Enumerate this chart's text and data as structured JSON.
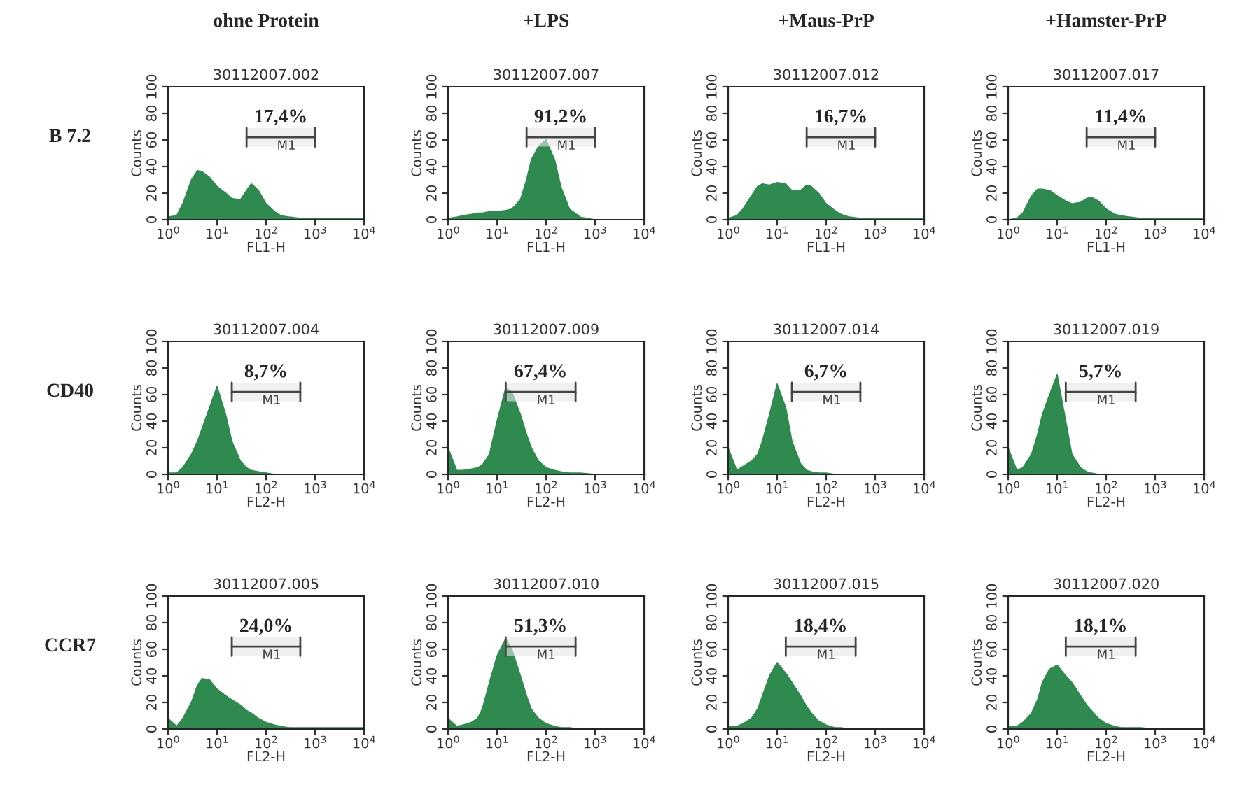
{
  "chart_data": [
    {
      "type": "area",
      "title": "ohne Protein",
      "subtitle": "30112007.002",
      "xlabel": "FL1-H",
      "ylabel": "Counts",
      "annotations": [
        "17,4%",
        "B 7.2"
      ],
      "log": "x",
      "xlim": [
        1,
        10000
      ],
      "ylim": [
        0,
        100
      ],
      "xticks": [
        {
          "value": 1,
          "label": "10$^{0}$"
        },
        {
          "value": 10,
          "label": "10$^{1}$"
        },
        {
          "value": 100,
          "label": "10$^{2}$"
        },
        {
          "value": 1000,
          "label": "10$^{3}$"
        },
        {
          "value": 10000,
          "label": "10$^{4}$"
        }
      ],
      "yticks": [
        0,
        20,
        40,
        60,
        80,
        100
      ],
      "bands": [
        {
          "axis": "x",
          "from": 40,
          "to": 1000,
          "label": "M1"
        }
      ],
      "x": [
        1,
        1.5,
        2,
        3,
        4,
        5,
        7,
        10,
        15,
        20,
        30,
        40,
        50,
        70,
        100,
        150,
        200,
        300,
        500,
        1000,
        10000
      ],
      "series": [
        {
          "color": "#2f8a50",
          "values": [
            2,
            3,
            12,
            30,
            37,
            36,
            32,
            25,
            20,
            16,
            15,
            22,
            27,
            22,
            12,
            6,
            3,
            2,
            1,
            1,
            1
          ]
        }
      ]
    },
    {
      "type": "area",
      "title": "+LPS",
      "subtitle": "30112007.007",
      "xlabel": "FL1-H",
      "ylabel": "Counts",
      "annotations": [
        "91,2%"
      ],
      "log": "x",
      "xlim": [
        1,
        10000
      ],
      "ylim": [
        0,
        100
      ],
      "xticks": [
        {
          "value": 1,
          "label": "10$^{0}$"
        },
        {
          "value": 10,
          "label": "10$^{1}$"
        },
        {
          "value": 100,
          "label": "10$^{2}$"
        },
        {
          "value": 1000,
          "label": "10$^{3}$"
        },
        {
          "value": 10000,
          "label": "10$^{4}$"
        }
      ],
      "yticks": [
        0,
        20,
        40,
        60,
        80,
        100
      ],
      "bands": [
        {
          "axis": "x",
          "from": 40,
          "to": 1000,
          "label": "M1"
        }
      ],
      "x": [
        1,
        1.5,
        2,
        3,
        4,
        5,
        7,
        10,
        15,
        20,
        30,
        40,
        50,
        70,
        100,
        150,
        200,
        300,
        500,
        1000,
        10000
      ],
      "series": [
        {
          "color": "#2f8a50",
          "values": [
            1,
            2,
            3,
            4,
            5,
            5,
            6,
            6,
            7,
            8,
            15,
            30,
            45,
            55,
            60,
            45,
            25,
            8,
            2,
            0,
            0
          ]
        }
      ]
    },
    {
      "type": "area",
      "title": "+Maus-PrP",
      "subtitle": "30112007.012",
      "xlabel": "FL1-H",
      "ylabel": "Counts",
      "annotations": [
        "16,7%"
      ],
      "log": "x",
      "xlim": [
        1,
        10000
      ],
      "ylim": [
        0,
        100
      ],
      "xticks": [
        {
          "value": 1,
          "label": "10$^{0}$"
        },
        {
          "value": 10,
          "label": "10$^{1}$"
        },
        {
          "value": 100,
          "label": "10$^{2}$"
        },
        {
          "value": 1000,
          "label": "10$^{3}$"
        },
        {
          "value": 10000,
          "label": "10$^{4}$"
        }
      ],
      "yticks": [
        0,
        20,
        40,
        60,
        80,
        100
      ],
      "bands": [
        {
          "axis": "x",
          "from": 40,
          "to": 1000,
          "label": "M1"
        }
      ],
      "x": [
        1,
        1.5,
        2,
        3,
        4,
        5,
        7,
        10,
        15,
        20,
        30,
        40,
        50,
        70,
        100,
        150,
        200,
        300,
        500,
        1000,
        10000
      ],
      "series": [
        {
          "color": "#2f8a50",
          "values": [
            1,
            3,
            8,
            18,
            25,
            27,
            26,
            28,
            27,
            22,
            22,
            26,
            25,
            20,
            12,
            7,
            4,
            2,
            1,
            1,
            1
          ]
        }
      ]
    },
    {
      "type": "area",
      "title": "+Hamster-PrP",
      "subtitle": "30112007.017",
      "xlabel": "FL1-H",
      "ylabel": "Counts",
      "annotations": [
        "11,4%"
      ],
      "log": "x",
      "xlim": [
        1,
        10000
      ],
      "ylim": [
        0,
        100
      ],
      "xticks": [
        {
          "value": 1,
          "label": "10$^{0}$"
        },
        {
          "value": 10,
          "label": "10$^{1}$"
        },
        {
          "value": 100,
          "label": "10$^{2}$"
        },
        {
          "value": 1000,
          "label": "10$^{3}$"
        },
        {
          "value": 10000,
          "label": "10$^{4}$"
        }
      ],
      "yticks": [
        0,
        20,
        40,
        60,
        80,
        100
      ],
      "bands": [
        {
          "axis": "x",
          "from": 40,
          "to": 1000,
          "label": "M1"
        }
      ],
      "x": [
        1,
        1.5,
        2,
        3,
        4,
        5,
        7,
        10,
        15,
        20,
        30,
        40,
        50,
        70,
        100,
        150,
        200,
        300,
        500,
        1000,
        10000
      ],
      "series": [
        {
          "color": "#2f8a50",
          "values": [
            0,
            1,
            5,
            18,
            23,
            23,
            22,
            18,
            14,
            12,
            13,
            16,
            17,
            14,
            8,
            4,
            3,
            2,
            1,
            1,
            1
          ]
        }
      ]
    },
    {
      "type": "area",
      "subtitle": "30112007.004",
      "xlabel": "FL2-H",
      "ylabel": "Counts",
      "annotations": [
        "8,7%",
        "CD40"
      ],
      "log": "x",
      "xlim": [
        1,
        10000
      ],
      "ylim": [
        0,
        100
      ],
      "xticks": [
        {
          "value": 1,
          "label": "10$^{0}$"
        },
        {
          "value": 10,
          "label": "10$^{1}$"
        },
        {
          "value": 100,
          "label": "10$^{2}$"
        },
        {
          "value": 1000,
          "label": "10$^{3}$"
        },
        {
          "value": 10000,
          "label": "10$^{4}$"
        }
      ],
      "yticks": [
        0,
        20,
        40,
        60,
        80,
        100
      ],
      "bands": [
        {
          "axis": "x",
          "from": 20,
          "to": 500,
          "label": "M1"
        }
      ],
      "x": [
        1,
        1.5,
        2,
        3,
        4,
        5,
        7,
        10,
        15,
        20,
        30,
        40,
        50,
        70,
        100,
        150,
        200,
        300,
        500,
        1000,
        10000
      ],
      "series": [
        {
          "color": "#2f8a50",
          "values": [
            1,
            1,
            5,
            15,
            25,
            35,
            50,
            66,
            45,
            25,
            10,
            5,
            3,
            2,
            1,
            0,
            0,
            0,
            0,
            0,
            0
          ]
        }
      ]
    },
    {
      "type": "area",
      "subtitle": "30112007.009",
      "xlabel": "FL2-H",
      "ylabel": "Counts",
      "annotations": [
        "67,4%"
      ],
      "log": "x",
      "xlim": [
        1,
        10000
      ],
      "ylim": [
        0,
        100
      ],
      "xticks": [
        {
          "value": 1,
          "label": "10$^{0}$"
        },
        {
          "value": 10,
          "label": "10$^{1}$"
        },
        {
          "value": 100,
          "label": "10$^{2}$"
        },
        {
          "value": 1000,
          "label": "10$^{3}$"
        },
        {
          "value": 10000,
          "label": "10$^{4}$"
        }
      ],
      "yticks": [
        0,
        20,
        40,
        60,
        80,
        100
      ],
      "bands": [
        {
          "axis": "x",
          "from": 15,
          "to": 400,
          "label": "M1"
        }
      ],
      "x": [
        1,
        1.5,
        2,
        3,
        4,
        5,
        7,
        10,
        15,
        20,
        30,
        40,
        50,
        70,
        100,
        150,
        200,
        300,
        500,
        1000,
        10000
      ],
      "series": [
        {
          "color": "#2f8a50",
          "values": [
            20,
            3,
            3,
            4,
            5,
            7,
            15,
            40,
            65,
            62,
            45,
            30,
            20,
            10,
            5,
            3,
            2,
            1,
            1,
            0,
            0
          ]
        }
      ]
    },
    {
      "type": "area",
      "subtitle": "30112007.014",
      "xlabel": "FL2-H",
      "ylabel": "Counts",
      "annotations": [
        "6,7%"
      ],
      "log": "x",
      "xlim": [
        1,
        10000
      ],
      "ylim": [
        0,
        100
      ],
      "xticks": [
        {
          "value": 1,
          "label": "10$^{0}$"
        },
        {
          "value": 10,
          "label": "10$^{1}$"
        },
        {
          "value": 100,
          "label": "10$^{2}$"
        },
        {
          "value": 1000,
          "label": "10$^{3}$"
        },
        {
          "value": 10000,
          "label": "10$^{4}$"
        }
      ],
      "yticks": [
        0,
        20,
        40,
        60,
        80,
        100
      ],
      "bands": [
        {
          "axis": "x",
          "from": 20,
          "to": 500,
          "label": "M1"
        }
      ],
      "x": [
        1,
        1.5,
        2,
        3,
        4,
        5,
        7,
        10,
        15,
        20,
        30,
        40,
        50,
        70,
        100,
        150,
        200,
        300,
        500,
        1000,
        10000
      ],
      "series": [
        {
          "color": "#2f8a50",
          "values": [
            20,
            3,
            6,
            10,
            15,
            25,
            45,
            68,
            50,
            25,
            8,
            3,
            2,
            1,
            1,
            0,
            0,
            0,
            0,
            0,
            0
          ]
        }
      ]
    },
    {
      "type": "area",
      "subtitle": "30112007.019",
      "xlabel": "FL2-H",
      "ylabel": "Counts",
      "annotations": [
        "5,7%"
      ],
      "log": "x",
      "xlim": [
        1,
        10000
      ],
      "ylim": [
        0,
        100
      ],
      "xticks": [
        {
          "value": 1,
          "label": "10$^{0}$"
        },
        {
          "value": 10,
          "label": "10$^{1}$"
        },
        {
          "value": 100,
          "label": "10$^{2}$"
        },
        {
          "value": 1000,
          "label": "10$^{3}$"
        },
        {
          "value": 10000,
          "label": "10$^{4}$"
        }
      ],
      "yticks": [
        0,
        20,
        40,
        60,
        80,
        100
      ],
      "bands": [
        {
          "axis": "x",
          "from": 15,
          "to": 400,
          "label": "M1"
        }
      ],
      "x": [
        1,
        1.5,
        2,
        3,
        4,
        5,
        7,
        10,
        15,
        20,
        30,
        40,
        50,
        70,
        100,
        150,
        200,
        300,
        500,
        1000,
        10000
      ],
      "series": [
        {
          "color": "#2f8a50",
          "values": [
            20,
            3,
            5,
            15,
            30,
            45,
            60,
            75,
            40,
            15,
            5,
            2,
            1,
            0,
            0,
            0,
            0,
            0,
            0,
            0,
            0
          ]
        }
      ]
    },
    {
      "type": "area",
      "subtitle": "30112007.005",
      "xlabel": "FL2-H",
      "ylabel": "Counts",
      "annotations": [
        "24,0%",
        "CCR7"
      ],
      "log": "x",
      "xlim": [
        1,
        10000
      ],
      "ylim": [
        0,
        100
      ],
      "xticks": [
        {
          "value": 1,
          "label": "10$^{0}$"
        },
        {
          "value": 10,
          "label": "10$^{1}$"
        },
        {
          "value": 100,
          "label": "10$^{2}$"
        },
        {
          "value": 1000,
          "label": "10$^{3}$"
        },
        {
          "value": 10000,
          "label": "10$^{4}$"
        }
      ],
      "yticks": [
        0,
        20,
        40,
        60,
        80,
        100
      ],
      "bands": [
        {
          "axis": "x",
          "from": 20,
          "to": 500,
          "label": "M1"
        }
      ],
      "x": [
        1,
        1.5,
        2,
        3,
        4,
        5,
        7,
        10,
        15,
        20,
        30,
        40,
        50,
        70,
        100,
        150,
        200,
        300,
        500,
        1000,
        10000
      ],
      "series": [
        {
          "color": "#2f8a50",
          "values": [
            8,
            2,
            8,
            20,
            33,
            38,
            37,
            30,
            25,
            22,
            18,
            14,
            12,
            8,
            5,
            3,
            2,
            1,
            1,
            1,
            1
          ]
        }
      ]
    },
    {
      "type": "area",
      "subtitle": "30112007.010",
      "xlabel": "FL2-H",
      "ylabel": "Counts",
      "annotations": [
        "51,3%"
      ],
      "log": "x",
      "xlim": [
        1,
        10000
      ],
      "ylim": [
        0,
        100
      ],
      "xticks": [
        {
          "value": 1,
          "label": "10$^{0}$"
        },
        {
          "value": 10,
          "label": "10$^{1}$"
        },
        {
          "value": 100,
          "label": "10$^{2}$"
        },
        {
          "value": 1000,
          "label": "10$^{3}$"
        },
        {
          "value": 10000,
          "label": "10$^{4}$"
        }
      ],
      "yticks": [
        0,
        20,
        40,
        60,
        80,
        100
      ],
      "bands": [
        {
          "axis": "x",
          "from": 15,
          "to": 400,
          "label": "M1"
        }
      ],
      "x": [
        1,
        1.5,
        2,
        3,
        4,
        5,
        7,
        10,
        15,
        20,
        30,
        40,
        50,
        70,
        100,
        150,
        200,
        300,
        500,
        1000,
        10000
      ],
      "series": [
        {
          "color": "#2f8a50",
          "values": [
            8,
            2,
            3,
            5,
            8,
            15,
            35,
            55,
            68,
            60,
            40,
            25,
            15,
            8,
            4,
            2,
            1,
            1,
            0,
            0,
            0
          ]
        }
      ]
    },
    {
      "type": "area",
      "subtitle": "30112007.015",
      "xlabel": "FL2-H",
      "ylabel": "Counts",
      "annotations": [
        "18,4%"
      ],
      "log": "x",
      "xlim": [
        1,
        10000
      ],
      "ylim": [
        0,
        100
      ],
      "xticks": [
        {
          "value": 1,
          "label": "10$^{0}$"
        },
        {
          "value": 10,
          "label": "10$^{1}$"
        },
        {
          "value": 100,
          "label": "10$^{2}$"
        },
        {
          "value": 1000,
          "label": "10$^{3}$"
        },
        {
          "value": 10000,
          "label": "10$^{4}$"
        }
      ],
      "yticks": [
        0,
        20,
        40,
        60,
        80,
        100
      ],
      "bands": [
        {
          "axis": "x",
          "from": 15,
          "to": 400,
          "label": "M1"
        }
      ],
      "x": [
        1,
        1.5,
        2,
        3,
        4,
        5,
        7,
        10,
        15,
        20,
        30,
        40,
        50,
        70,
        100,
        150,
        200,
        300,
        500,
        1000,
        10000
      ],
      "series": [
        {
          "color": "#2f8a50",
          "values": [
            2,
            2,
            4,
            8,
            15,
            25,
            40,
            50,
            42,
            35,
            25,
            17,
            12,
            6,
            3,
            1,
            1,
            0,
            0,
            0,
            0
          ]
        }
      ]
    },
    {
      "type": "area",
      "subtitle": "30112007.020",
      "xlabel": "FL2-H",
      "ylabel": "Counts",
      "annotations": [
        "18,1%"
      ],
      "log": "x",
      "xlim": [
        1,
        10000
      ],
      "ylim": [
        0,
        100
      ],
      "xticks": [
        {
          "value": 1,
          "label": "10$^{0}$"
        },
        {
          "value": 10,
          "label": "10$^{1}$"
        },
        {
          "value": 100,
          "label": "10$^{2}$"
        },
        {
          "value": 1000,
          "label": "10$^{3}$"
        },
        {
          "value": 10000,
          "label": "10$^{4}$"
        }
      ],
      "yticks": [
        0,
        20,
        40,
        60,
        80,
        100
      ],
      "bands": [
        {
          "axis": "x",
          "from": 15,
          "to": 400,
          "label": "M1"
        }
      ],
      "x": [
        1,
        1.5,
        2,
        3,
        4,
        5,
        7,
        10,
        15,
        20,
        30,
        40,
        50,
        70,
        100,
        150,
        200,
        300,
        500,
        1000,
        10000
      ],
      "series": [
        {
          "color": "#2f8a50",
          "values": [
            2,
            2,
            5,
            12,
            22,
            35,
            45,
            48,
            40,
            35,
            25,
            18,
            14,
            8,
            4,
            2,
            1,
            1,
            1,
            0,
            0
          ]
        }
      ]
    }
  ]
}
